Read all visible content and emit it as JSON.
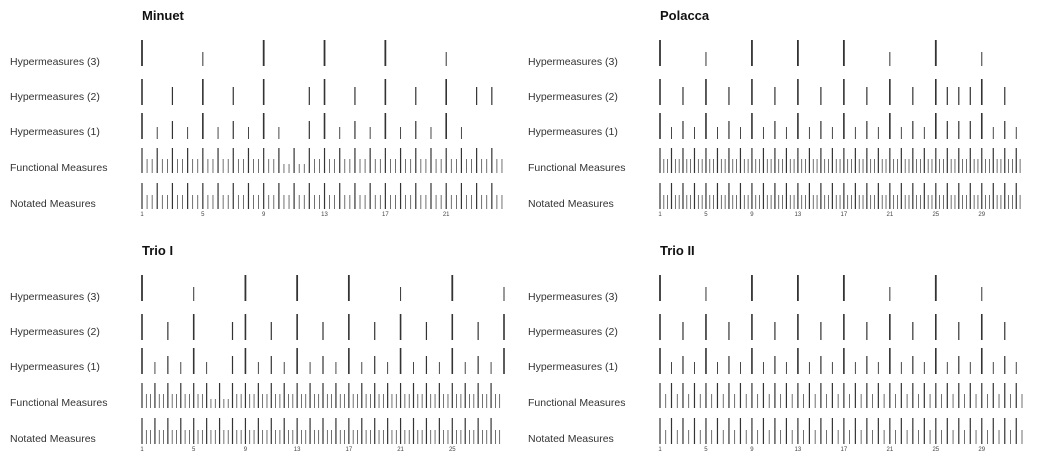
{
  "chart_data": [
    {
      "type": "rug",
      "title": "Minuet",
      "rows": [
        {
          "label": "Hypermeasures (3)",
          "level": 3
        },
        {
          "label": "Hypermeasures (2)",
          "level": 2
        },
        {
          "label": "Hypermeasures (1)",
          "level": 1
        },
        {
          "label": "Functional Measures",
          "level": 0
        },
        {
          "label": "Notated Measures",
          "level": -1
        }
      ],
      "x_ticks": [
        1,
        5,
        9,
        13,
        17,
        21
      ],
      "xlim": [
        1,
        24.8
      ],
      "ticks_per_measure": 3,
      "hyper3": [
        1,
        5,
        9,
        13,
        17,
        21,
        25
      ],
      "hyper2": [
        1,
        3,
        5,
        7,
        9,
        12,
        13,
        15,
        17,
        19,
        21,
        23,
        24
      ],
      "hyper1": [
        1,
        2,
        3,
        4,
        5,
        6,
        7,
        8,
        9,
        10,
        12,
        13,
        14,
        15,
        16,
        17,
        18,
        19,
        20,
        21,
        22
      ],
      "functional_irregular": [
        [
          10,
          12
        ]
      ]
    },
    {
      "type": "rug",
      "title": "Polacca",
      "rows": [
        {
          "label": "Hypermeasures (3)",
          "level": 3
        },
        {
          "label": "Hypermeasures (2)",
          "level": 2
        },
        {
          "label": "Hypermeasures (1)",
          "level": 1
        },
        {
          "label": "Functional Measures",
          "level": 0
        },
        {
          "label": "Notated Measures",
          "level": -1
        }
      ],
      "x_ticks": [
        1,
        5,
        9,
        13,
        17,
        21,
        25,
        29
      ],
      "xlim": [
        1,
        32.5
      ],
      "ticks_per_measure": 3,
      "hyper3": [
        1,
        5,
        9,
        13,
        17,
        21,
        25,
        29
      ],
      "hyper2": [
        1,
        3,
        5,
        7,
        9,
        11,
        13,
        15,
        17,
        19,
        21,
        23,
        25,
        26,
        27,
        28,
        29,
        31
      ],
      "hyper1": [
        1,
        2,
        3,
        4,
        5,
        6,
        7,
        8,
        9,
        10,
        11,
        12,
        13,
        14,
        15,
        16,
        17,
        18,
        19,
        20,
        21,
        22,
        23,
        24,
        25,
        26,
        27,
        28,
        29,
        30,
        31,
        32
      ],
      "functional_irregular": []
    },
    {
      "type": "rug",
      "title": "Trio I",
      "rows": [
        {
          "label": "Hypermeasures (3)",
          "level": 3
        },
        {
          "label": "Hypermeasures (2)",
          "level": 2
        },
        {
          "label": "Hypermeasures (1)",
          "level": 1
        },
        {
          "label": "Functional Measures",
          "level": 0
        },
        {
          "label": "Notated Measures",
          "level": -1
        }
      ],
      "x_ticks": [
        1,
        5,
        9,
        13,
        17,
        21,
        25
      ],
      "xlim": [
        1,
        29
      ],
      "ticks_per_measure": 3,
      "hyper3": [
        1,
        5,
        9,
        13,
        17,
        21,
        25,
        29
      ],
      "hyper2": [
        1,
        3,
        5,
        8,
        9,
        11,
        13,
        15,
        17,
        19,
        21,
        23,
        25,
        27,
        29
      ],
      "hyper1": [
        1,
        2,
        3,
        4,
        5,
        6,
        8,
        9,
        10,
        11,
        12,
        13,
        14,
        15,
        16,
        17,
        18,
        19,
        20,
        21,
        22,
        23,
        24,
        25,
        26,
        27,
        28,
        29
      ],
      "functional_irregular": [
        [
          6,
          8
        ]
      ]
    },
    {
      "type": "rug",
      "title": "Trio II",
      "rows": [
        {
          "label": "Hypermeasures (3)",
          "level": 3
        },
        {
          "label": "Hypermeasures (2)",
          "level": 2
        },
        {
          "label": "Hypermeasures (1)",
          "level": 1
        },
        {
          "label": "Functional Measures",
          "level": 0
        },
        {
          "label": "Notated Measures",
          "level": -1
        }
      ],
      "x_ticks": [
        1,
        5,
        9,
        13,
        17,
        21,
        25,
        29
      ],
      "xlim": [
        1,
        32.5
      ],
      "ticks_per_measure": 2,
      "hyper3": [
        1,
        5,
        9,
        13,
        17,
        21,
        25,
        29
      ],
      "hyper2": [
        1,
        3,
        5,
        7,
        9,
        11,
        13,
        15,
        17,
        19,
        21,
        23,
        25,
        27,
        29,
        31
      ],
      "hyper1": [
        1,
        2,
        3,
        4,
        5,
        6,
        7,
        8,
        9,
        10,
        11,
        12,
        13,
        14,
        15,
        16,
        17,
        18,
        19,
        20,
        21,
        22,
        23,
        24,
        25,
        26,
        27,
        28,
        29,
        30,
        31,
        32
      ],
      "functional_irregular": []
    }
  ]
}
